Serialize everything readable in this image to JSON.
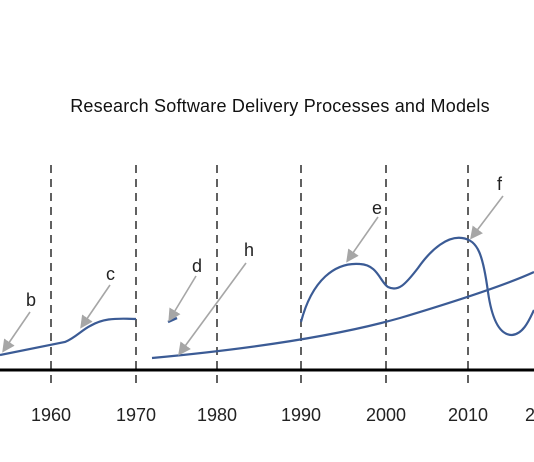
{
  "title": "Research Software Delivery Processes and Models",
  "colors": {
    "curve": "#3b5b95",
    "arrow": "#a6a6a6",
    "axis": "#000000",
    "dashed": "#3a3a3a",
    "text": "#222222"
  },
  "axis": {
    "year_ticks": [
      "1960",
      "1970",
      "1980",
      "1990",
      "2000",
      "2010",
      "2"
    ],
    "dashed_line_years": [
      "1960",
      "1970",
      "1980",
      "1990",
      "2000",
      "2010"
    ]
  },
  "labels": [
    "b",
    "c",
    "d",
    "e",
    "f",
    "h"
  ]
}
